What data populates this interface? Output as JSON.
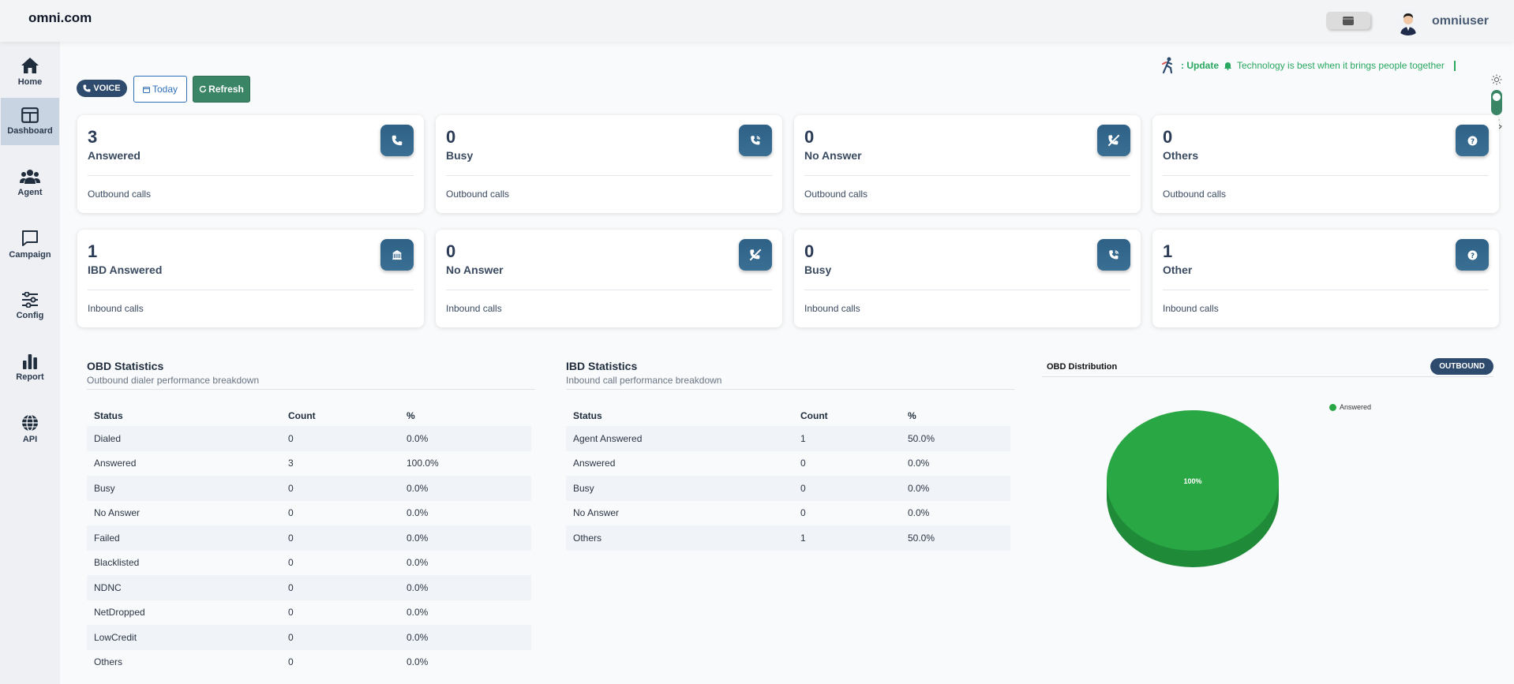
{
  "app": {
    "logo": "omni.com",
    "username": "omniuser"
  },
  "sidebar": {
    "items": [
      {
        "label": "Home",
        "icon": "home-icon"
      },
      {
        "label": "Dashboard",
        "icon": "dashboard-icon",
        "active": true
      },
      {
        "label": "Agent",
        "icon": "agents-icon"
      },
      {
        "label": "Campaign",
        "icon": "chat-icon"
      },
      {
        "label": "Config",
        "icon": "sliders-icon"
      },
      {
        "label": "Report",
        "icon": "bar-chart-icon"
      },
      {
        "label": "API",
        "icon": "globe-icon"
      }
    ]
  },
  "controls": {
    "voice": "VOICE",
    "today": "Today",
    "refresh": "Refresh"
  },
  "ticker": {
    "prefix": ": Update",
    "message": "Technology is best when it brings people together"
  },
  "outbound_cards": [
    {
      "value": "3",
      "title": "Answered",
      "sub": "Outbound calls",
      "icon": "phone-icon"
    },
    {
      "value": "0",
      "title": "Busy",
      "sub": "Outbound calls",
      "icon": "phone-busy-icon"
    },
    {
      "value": "0",
      "title": "No Answer",
      "sub": "Outbound calls",
      "icon": "phone-missed-icon"
    },
    {
      "value": "0",
      "title": "Others",
      "sub": "Outbound calls",
      "icon": "question-icon"
    }
  ],
  "inbound_cards": [
    {
      "value": "1",
      "title": "IBD Answered",
      "sub": "Inbound calls",
      "icon": "building-icon"
    },
    {
      "value": "0",
      "title": "No Answer",
      "sub": "Inbound calls",
      "icon": "phone-missed-icon"
    },
    {
      "value": "0",
      "title": "Busy",
      "sub": "Inbound calls",
      "icon": "phone-busy-icon"
    },
    {
      "value": "1",
      "title": "Other",
      "sub": "Inbound calls",
      "icon": "question-icon"
    }
  ],
  "obd_stats": {
    "title": "OBD Statistics",
    "subtitle": "Outbound dialer performance breakdown",
    "columns": [
      "Status",
      "Count",
      "%"
    ],
    "rows": [
      [
        "Dialed",
        "0",
        "0.0%"
      ],
      [
        "Answered",
        "3",
        "100.0%"
      ],
      [
        "Busy",
        "0",
        "0.0%"
      ],
      [
        "No Answer",
        "0",
        "0.0%"
      ],
      [
        "Failed",
        "0",
        "0.0%"
      ],
      [
        "Blacklisted",
        "0",
        "0.0%"
      ],
      [
        "NDNC",
        "0",
        "0.0%"
      ],
      [
        "NetDropped",
        "0",
        "0.0%"
      ],
      [
        "LowCredit",
        "0",
        "0.0%"
      ],
      [
        "Others",
        "0",
        "0.0%"
      ]
    ]
  },
  "ibd_stats": {
    "title": "IBD Statistics",
    "subtitle": "Inbound call performance breakdown",
    "columns": [
      "Status",
      "Count",
      "%"
    ],
    "rows": [
      [
        "Agent Answered",
        "1",
        "50.0%"
      ],
      [
        "Answered",
        "0",
        "0.0%"
      ],
      [
        "Busy",
        "0",
        "0.0%"
      ],
      [
        "No Answer",
        "0",
        "0.0%"
      ],
      [
        "Others",
        "1",
        "50.0%"
      ]
    ]
  },
  "distribution": {
    "title": "OBD Distribution",
    "tag": "OUTBOUND",
    "slice_label": "100%",
    "legend": "Answered",
    "color": "#2aa745"
  }
}
